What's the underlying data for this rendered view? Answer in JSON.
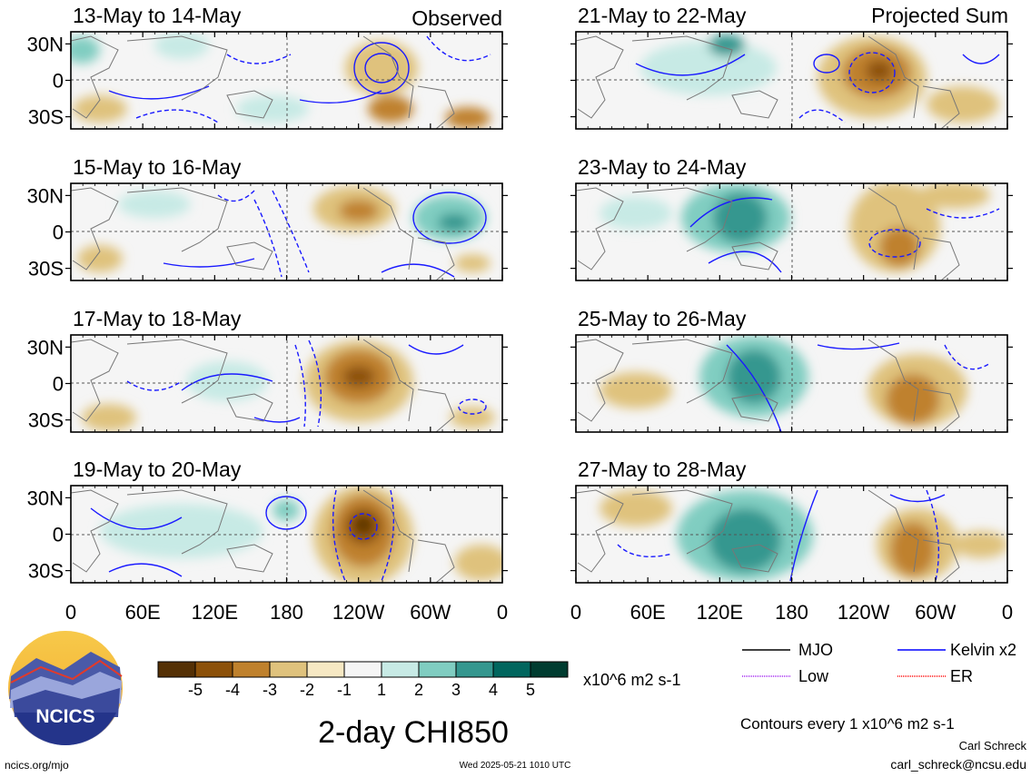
{
  "left_column_label": "Observed",
  "right_column_label": "Projected Sum",
  "panels_left": [
    {
      "title": "13-May to 14-May"
    },
    {
      "title": "15-May to 16-May"
    },
    {
      "title": "17-May to 18-May"
    },
    {
      "title": "19-May to 20-May"
    }
  ],
  "panels_right": [
    {
      "title": "21-May to 22-May"
    },
    {
      "title": "23-May to 24-May"
    },
    {
      "title": "25-May to 26-May"
    },
    {
      "title": "27-May to 28-May"
    }
  ],
  "chart_data": {
    "type": "heatmap",
    "title": "2-day CHI850",
    "variable": "CHI850",
    "units": "x10^6 m2 s-1",
    "x_ticks": [
      "0",
      "60E",
      "120E",
      "180",
      "120W",
      "60W",
      "0"
    ],
    "y_ticks": [
      "30N",
      "0",
      "30S"
    ],
    "colorbar_ticks": [
      "-5",
      "-4",
      "-3",
      "-2",
      "-1",
      "1",
      "2",
      "3",
      "4",
      "5"
    ],
    "colorbar_colors": [
      "#543005",
      "#8c510a",
      "#bf812d",
      "#dfc27d",
      "#f6e8c3",
      "#f5f5f5",
      "#c7eae5",
      "#80cdc1",
      "#35978f",
      "#01665e",
      "#003c30"
    ],
    "legend": [
      {
        "label": "MJO",
        "color": "#000000"
      },
      {
        "label": "Kelvin x2",
        "color": "#0000ff"
      },
      {
        "label": "Low",
        "color": "#a020f0"
      },
      {
        "label": "ER",
        "color": "#ff0000"
      }
    ],
    "contour_note": "Contours every 1 x10^6 m2 s-1"
  },
  "footer": {
    "logo_text": "NCICS",
    "site": "ncics.org/mjo",
    "timestamp": "Wed 2025-05-21 1010 UTC",
    "author": "Carl Schreck",
    "email": "carl_schreck@ncsu.edu"
  }
}
